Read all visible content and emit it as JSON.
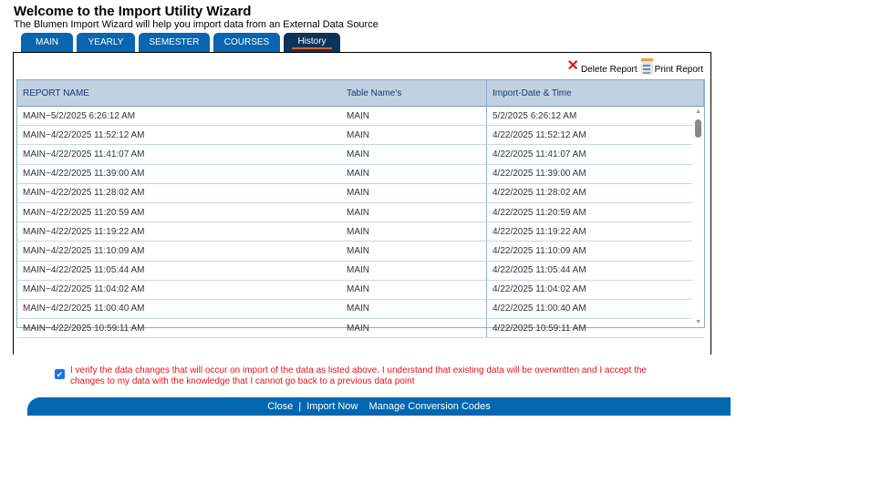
{
  "header": {
    "title": "Welcome to the Import Utility Wizard",
    "subtitle": "The Blumen Import Wizard will help you import data from an External Data Source"
  },
  "tabs": [
    {
      "label": "MAIN"
    },
    {
      "label": "YEARLY"
    },
    {
      "label": "SEMESTER"
    },
    {
      "label": "COURSES"
    },
    {
      "label": "History",
      "active": true
    }
  ],
  "actions": {
    "delete": "Delete Report",
    "print": "Print Report"
  },
  "table": {
    "columns": [
      "REPORT NAME",
      "Table Name's",
      "Import-Date & Time"
    ],
    "rows": [
      [
        "MAIN~5/2/2025 6:26:12 AM",
        "MAIN",
        "5/2/2025 6:26:12 AM"
      ],
      [
        "MAIN~4/22/2025 11:52:12 AM",
        "MAIN",
        "4/22/2025 11:52:12 AM"
      ],
      [
        "MAIN~4/22/2025 11:41:07 AM",
        "MAIN",
        "4/22/2025 11:41:07 AM"
      ],
      [
        "MAIN~4/22/2025 11:39:00 AM",
        "MAIN",
        "4/22/2025 11:39:00 AM"
      ],
      [
        "MAIN~4/22/2025 11:28:02 AM",
        "MAIN",
        "4/22/2025 11:28:02 AM"
      ],
      [
        "MAIN~4/22/2025 11:20:59 AM",
        "MAIN",
        "4/22/2025 11:20:59 AM"
      ],
      [
        "MAIN~4/22/2025 11:19:22 AM",
        "MAIN",
        "4/22/2025 11:19:22 AM"
      ],
      [
        "MAIN~4/22/2025 11:10:09 AM",
        "MAIN",
        "4/22/2025 11:10:09 AM"
      ],
      [
        "MAIN~4/22/2025 11:05:44 AM",
        "MAIN",
        "4/22/2025 11:05:44 AM"
      ],
      [
        "MAIN~4/22/2025 11:04:02 AM",
        "MAIN",
        "4/22/2025 11:04:02 AM"
      ],
      [
        "MAIN~4/22/2025 11:00:40 AM",
        "MAIN",
        "4/22/2025 11:00:40 AM"
      ],
      [
        "MAIN~4/22/2025 10:59:11 AM",
        "MAIN",
        "4/22/2025 10:59:11 AM"
      ]
    ]
  },
  "verify": {
    "checked": true,
    "text": "I verify the data changes that will occur on import of the data as listed above. I understand that existing data will be overwritten and I accept the changes to my data with the knowledge that I cannot go back to a previous data point"
  },
  "footer": {
    "close": "Close",
    "separator": "|",
    "import": "Import Now",
    "manage": "Manage Conversion Codes"
  },
  "colors": {
    "tab": "#0a65b0",
    "active_tab": "#0d3358",
    "accent": "#f05a1a",
    "bar": "#0067b1",
    "warning": "#e8141e"
  }
}
